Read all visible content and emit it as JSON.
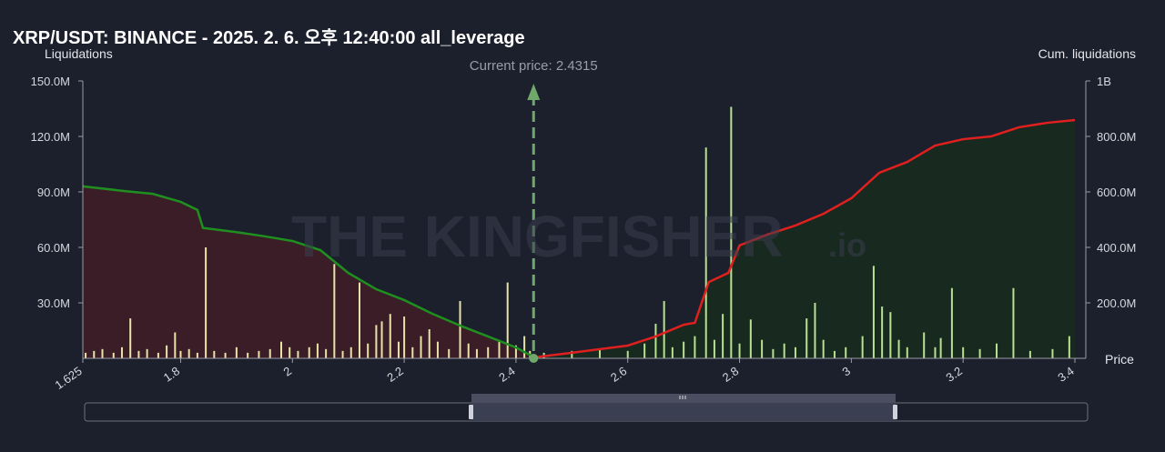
{
  "chart_data": {
    "type": "bar",
    "title": "XRP/USDT: BINANCE - 2025. 2. 6. 오후 12:40:00 all_leverage",
    "y_label": "Liquidations",
    "y2_label": "Cum. liquidations",
    "x_label": "Price",
    "watermark": "THE KINGFISHER",
    "watermark_suffix": ".io",
    "annotation": {
      "x": 2.4315,
      "label": "Current price: 2.4315",
      "color": "#6fa86a"
    },
    "xlim": [
      1.625,
      3.4
    ],
    "xticks": [
      1.625,
      1.8,
      2,
      2.2,
      2.4,
      2.6,
      2.8,
      3,
      3.2,
      3.4
    ],
    "ylim": [
      0,
      150000000
    ],
    "yticks": [
      {
        "value": 30000000,
        "label": "30.0M"
      },
      {
        "value": 60000000,
        "label": "60.0M"
      },
      {
        "value": 90000000,
        "label": "90.0M"
      },
      {
        "value": 120000000,
        "label": "120.0M"
      },
      {
        "value": 150000000,
        "label": "150.0M"
      }
    ],
    "y2lim": [
      0,
      1000000000
    ],
    "y2ticks": [
      {
        "value": 200000000,
        "label": "200.0M"
      },
      {
        "value": 400000000,
        "label": "400.0M"
      },
      {
        "value": 600000000,
        "label": "600.0M"
      },
      {
        "value": 800000000,
        "label": "800.0M"
      },
      {
        "value": 1000000000,
        "label": "1B"
      }
    ],
    "bars": {
      "color_below": "#e8e4a8",
      "color_above": "#b8e290",
      "x": [
        1.63,
        1.645,
        1.66,
        1.68,
        1.695,
        1.71,
        1.725,
        1.74,
        1.76,
        1.775,
        1.79,
        1.8,
        1.815,
        1.83,
        1.845,
        1.86,
        1.88,
        1.9,
        1.92,
        1.94,
        1.96,
        1.98,
        1.995,
        2.01,
        2.03,
        2.045,
        2.06,
        2.075,
        2.09,
        2.105,
        2.12,
        2.135,
        2.15,
        2.16,
        2.175,
        2.19,
        2.2,
        2.215,
        2.23,
        2.245,
        2.26,
        2.28,
        2.3,
        2.315,
        2.33,
        2.35,
        2.37,
        2.385,
        2.4,
        2.415,
        2.425,
        2.45,
        2.5,
        2.55,
        2.6,
        2.63,
        2.65,
        2.665,
        2.68,
        2.7,
        2.72,
        2.74,
        2.755,
        2.77,
        2.785,
        2.8,
        2.82,
        2.84,
        2.86,
        2.88,
        2.9,
        2.92,
        2.935,
        2.95,
        2.97,
        2.99,
        3.02,
        3.04,
        3.055,
        3.07,
        3.085,
        3.1,
        3.13,
        3.15,
        3.16,
        3.18,
        3.2,
        3.23,
        3.26,
        3.29,
        3.32,
        3.36,
        3.39
      ],
      "values": [
        3000000,
        4000000,
        5000000,
        3000000,
        6000000,
        21600000,
        4000000,
        5000000,
        3000000,
        7000000,
        14000000,
        4000000,
        5000000,
        3000000,
        60000000,
        4000000,
        3000000,
        6000000,
        3000000,
        4000000,
        5000000,
        9000000,
        6000000,
        4000000,
        6000000,
        8000000,
        5000000,
        51000000,
        4000000,
        6000000,
        41000000,
        8000000,
        18000000,
        20000000,
        24000000,
        9000000,
        22600000,
        6000000,
        12000000,
        15700000,
        9000000,
        5000000,
        31000000,
        8000000,
        5000000,
        6000000,
        10000000,
        41000000,
        7000000,
        12000000,
        4000000,
        3000000,
        4000000,
        5000000,
        4000000,
        8000000,
        18700000,
        31000000,
        6000000,
        9000000,
        12000000,
        114000000,
        10000000,
        24000000,
        136000000,
        8000000,
        21000000,
        10000000,
        5000000,
        8000000,
        6000000,
        21600000,
        30000000,
        10000000,
        4000000,
        6000000,
        12000000,
        50000000,
        28000000,
        25000000,
        10000000,
        6000000,
        14000000,
        6000000,
        11000000,
        38000000,
        6000000,
        5000000,
        8000000,
        38000000,
        4000000,
        5000000,
        12000000
      ]
    },
    "lines": [
      {
        "axis": "y2",
        "color": "#1f8f1f",
        "fill": "#3a1d27",
        "x": [
          1.625,
          1.7,
          1.75,
          1.8,
          1.83,
          1.84,
          1.9,
          1.95,
          2,
          2.05,
          2.1,
          2.15,
          2.2,
          2.25,
          2.3,
          2.35,
          2.4,
          2.43
        ],
        "values": [
          620000000,
          603000000,
          593000000,
          564000000,
          535000000,
          470000000,
          455000000,
          440000000,
          423000000,
          390000000,
          308000000,
          249000000,
          210000000,
          161000000,
          118000000,
          79000000,
          39000000,
          7000000
        ]
      },
      {
        "axis": "y2",
        "color": "#e0201e",
        "fill": "#18291f",
        "x": [
          2.43,
          2.5,
          2.6,
          2.65,
          2.7,
          2.72,
          2.745,
          2.78,
          2.8,
          2.85,
          2.9,
          2.95,
          3,
          3.05,
          3.1,
          3.15,
          3.2,
          3.25,
          3.3,
          3.35,
          3.4
        ],
        "values": [
          3000000,
          20000000,
          46000000,
          79000000,
          121000000,
          128000000,
          275000000,
          308000000,
          407000000,
          446000000,
          479000000,
          521000000,
          577000000,
          669000000,
          708000000,
          767000000,
          790000000,
          800000000,
          833000000,
          849000000,
          859000000
        ]
      }
    ]
  }
}
